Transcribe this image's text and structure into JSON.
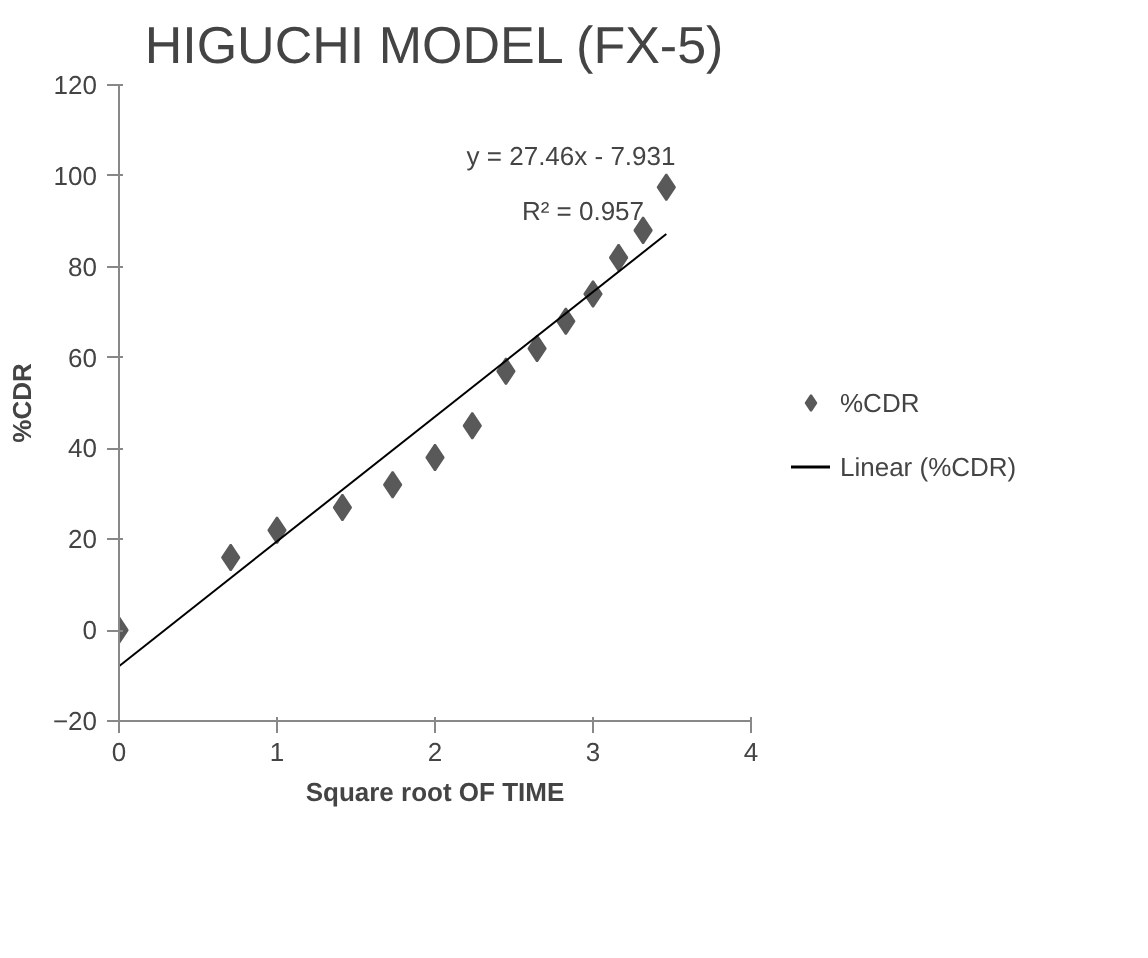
{
  "chart_data": {
    "type": "scatter",
    "title": "HIGUCHI MODEL (FX-5)",
    "xlabel": "Square root OF TIME",
    "ylabel": "%CDR",
    "xlim": [
      0,
      4
    ],
    "xticks": [
      0,
      1,
      2,
      3,
      4
    ],
    "ylim": [
      -20,
      120
    ],
    "yticks": [
      -20,
      0,
      20,
      40,
      60,
      80,
      100,
      120
    ],
    "grid": false,
    "legend": "right",
    "marker": "diamond",
    "series": [
      {
        "name": "%CDR",
        "color": "#595959",
        "x": [
          0,
          0.707,
          1,
          1.414,
          1.732,
          2,
          2.236,
          2.449,
          2.646,
          2.828,
          3,
          3.162,
          3.317,
          3.464
        ],
        "values": [
          0,
          16,
          22,
          27,
          32,
          38,
          45,
          57,
          62,
          68,
          74,
          82,
          88,
          97.5
        ]
      },
      {
        "name": "Linear (%CDR)",
        "type": "line",
        "marker": "none",
        "color": "#000000",
        "x": [
          0,
          3.464
        ],
        "values": [
          -7.931,
          87.19
        ]
      }
    ],
    "annotations": [
      "y = 27.46x - 7.931",
      "R² = 0.957"
    ]
  }
}
